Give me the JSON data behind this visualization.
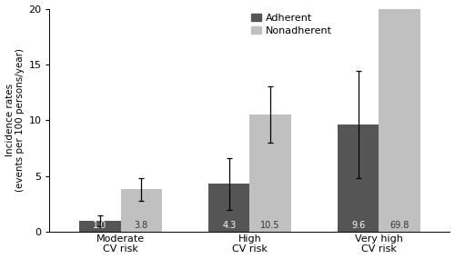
{
  "categories": [
    "Moderate\nCV risk",
    "High\nCV risk",
    "Very high\nCV risk"
  ],
  "adherent_values": [
    1.0,
    4.3,
    9.6
  ],
  "nonadherent_values": [
    3.8,
    10.5,
    20.0
  ],
  "adherent_errors": [
    0.5,
    2.3,
    4.8
  ],
  "nonadherent_errors": [
    1.0,
    2.5,
    0.0
  ],
  "adherent_labels": [
    "1.0",
    "4.3",
    "9.6"
  ],
  "nonadherent_labels": [
    "3.8",
    "10.5",
    "69.8"
  ],
  "adherent_color": "#555555",
  "nonadherent_color": "#c0c0c0",
  "ylabel": "Incidence rates\n(events per 100 persons/year)",
  "ylim": [
    0,
    20
  ],
  "yticks": [
    0,
    5,
    10,
    15,
    20
  ],
  "legend_adherent": "Adherent",
  "legend_nonadherent": "Nonadherent",
  "bar_width": 0.32,
  "figsize": [
    5.0,
    2.85
  ],
  "dpi": 100
}
